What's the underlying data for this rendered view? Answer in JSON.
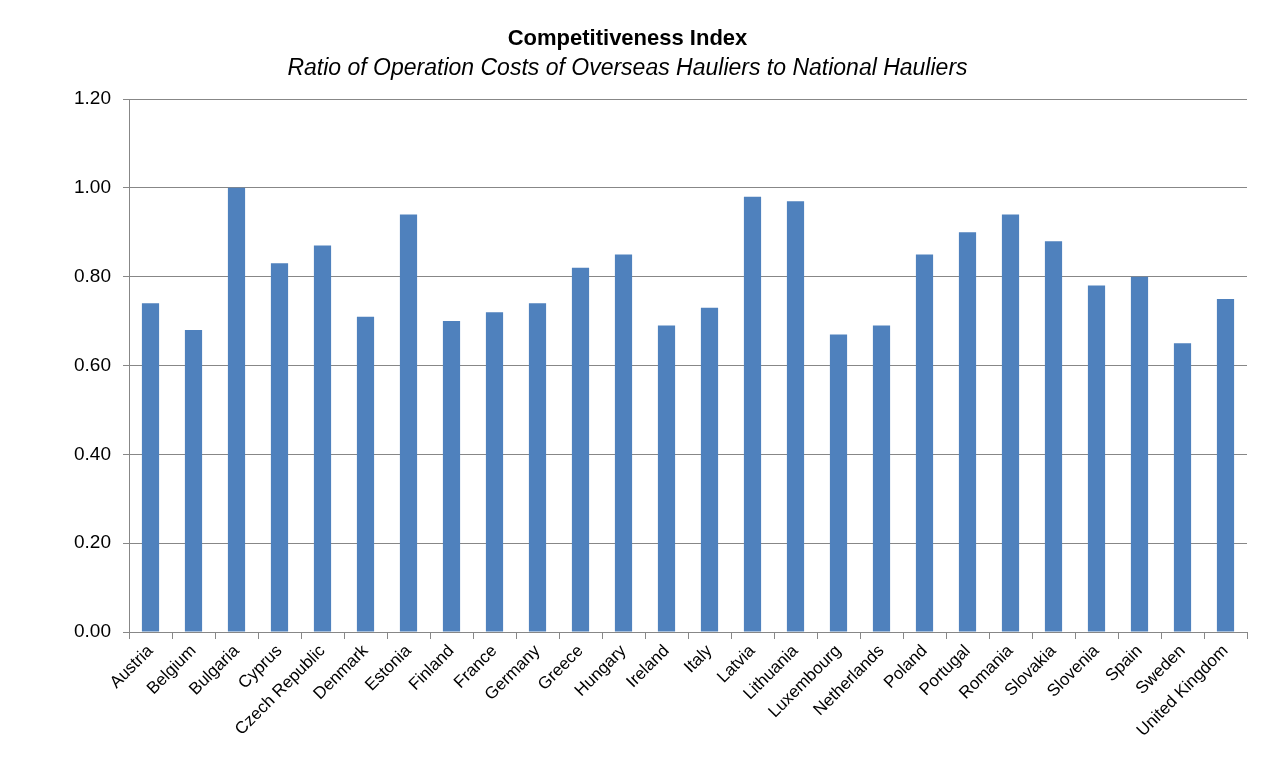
{
  "chart_data": {
    "type": "bar",
    "title": "Competitiveness Index",
    "subtitle": "Ratio of Operation Costs of Overseas Hauliers to National Hauliers",
    "categories": [
      "Austria",
      "Belgium",
      "Bulgaria",
      "Cyprus",
      "Czech Republic",
      "Denmark",
      "Estonia",
      "Finland",
      "France",
      "Germany",
      "Greece",
      "Hungary",
      "Ireland",
      "Italy",
      "Latvia",
      "Lithuania",
      "Luxembourg",
      "Netherlands",
      "Poland",
      "Portugal",
      "Romania",
      "Slovakia",
      "Slovenia",
      "Spain",
      "Sweden",
      "United Kingdom"
    ],
    "values": [
      0.74,
      0.68,
      1.0,
      0.83,
      0.87,
      0.71,
      0.94,
      0.7,
      0.72,
      0.74,
      0.82,
      0.85,
      0.69,
      0.73,
      0.98,
      0.97,
      0.67,
      0.69,
      0.85,
      0.9,
      0.94,
      0.88,
      0.78,
      0.8,
      0.65,
      0.75
    ],
    "color": "#4f81bd",
    "ylim": [
      0,
      1.2
    ],
    "yticks": [
      {
        "value": 0,
        "label": "0.00"
      },
      {
        "value": 0.2,
        "label": "0.20"
      },
      {
        "value": 0.4,
        "label": "0.40"
      },
      {
        "value": 0.6,
        "label": "0.60"
      },
      {
        "value": 0.8,
        "label": "0.80"
      },
      {
        "value": 1.0,
        "label": "1.00"
      },
      {
        "value": 1.2,
        "label": "1.20"
      }
    ],
    "grid": "y"
  }
}
